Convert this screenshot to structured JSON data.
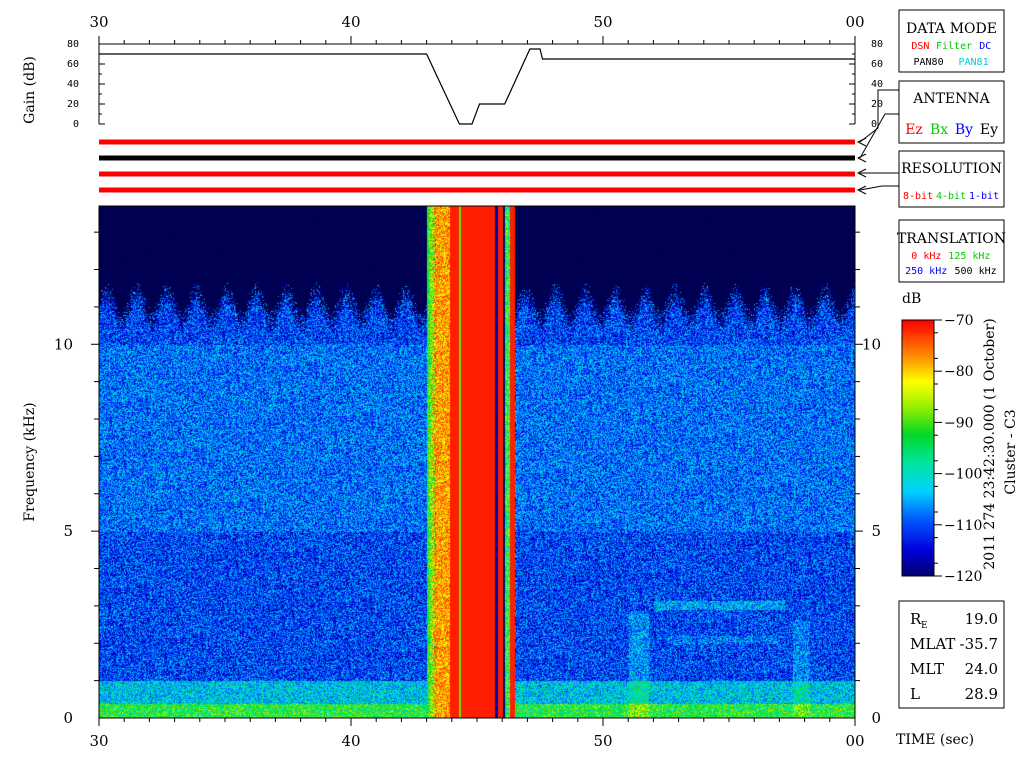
{
  "chart_data": {
    "type": "heatmap",
    "time_axis": {
      "label": "TIME (sec)",
      "tick_labels": [
        "30",
        "40",
        "50",
        "00"
      ],
      "range": [
        30,
        60
      ]
    },
    "gain_panel": {
      "ylabel": "Gain (dB)",
      "tick_labels": [
        "80",
        "60",
        "40",
        "20",
        "0"
      ],
      "range": [
        0,
        80
      ],
      "trace": [
        {
          "t": 30.0,
          "gain": 70
        },
        {
          "t": 43.0,
          "gain": 70
        },
        {
          "t": 44.3,
          "gain": 0
        },
        {
          "t": 44.8,
          "gain": 0
        },
        {
          "t": 45.1,
          "gain": 20
        },
        {
          "t": 46.1,
          "gain": 20
        },
        {
          "t": 47.1,
          "gain": 75
        },
        {
          "t": 47.5,
          "gain": 75
        },
        {
          "t": 47.6,
          "gain": 65
        },
        {
          "t": 60.0,
          "gain": 65
        }
      ]
    },
    "status_bars": {
      "colors": [
        "#ff0000",
        "#000000",
        "#ff0000",
        "#ff0000"
      ]
    },
    "spectrogram": {
      "ylabel": "Frequency (kHz)",
      "tick_labels": [
        "10",
        "5",
        "0"
      ],
      "frequency_range_khz": [
        0,
        13.7
      ],
      "time_range_sec": [
        30,
        60
      ],
      "noise_floor_db": -110,
      "cutoff_khz": 11,
      "intense_band_sec": [
        43.0,
        46.5
      ]
    },
    "colorbar": {
      "unit": "dB",
      "tick_labels": [
        "-70",
        "-80",
        "-90",
        "-100",
        "-110",
        "-120"
      ],
      "range": [
        -120,
        -70
      ]
    },
    "legend_boxes": {
      "data_mode": {
        "title": "DATA MODE",
        "row1": [
          {
            "text": "DSN",
            "color": "#ff0000"
          },
          {
            "text": "Filter",
            "color": "#00cc00"
          },
          {
            "text": "DC",
            "color": "#0000ff"
          }
        ],
        "row2": [
          {
            "text": "PAN80",
            "color": "#000000"
          },
          {
            "text": "PAN81",
            "color": "#00cccc"
          }
        ]
      },
      "antenna": {
        "title": "ANTENNA",
        "items": [
          {
            "text": "Ez",
            "color": "#ff0000"
          },
          {
            "text": "Bx",
            "color": "#00cc00"
          },
          {
            "text": "By",
            "color": "#0000ff"
          },
          {
            "text": "Ey",
            "color": "#000000"
          }
        ]
      },
      "resolution": {
        "title": "RESOLUTION",
        "items": [
          {
            "text": "8-bit",
            "color": "#ff0000"
          },
          {
            "text": "4-bit",
            "color": "#00cc00"
          },
          {
            "text": "1-bit",
            "color": "#0000ff"
          }
        ]
      },
      "translation": {
        "title": "TRANSLATION",
        "row1": [
          {
            "text": "0 kHz",
            "color": "#ff0000"
          },
          {
            "text": "125 kHz",
            "color": "#00cc00"
          }
        ],
        "row2": [
          {
            "text": "250 kHz",
            "color": "#0000ff"
          },
          {
            "text": "500 kHz",
            "color": "#000000"
          }
        ]
      }
    },
    "side_label": "2011 274 23:42:30.000 (1 October)",
    "spacecraft": "Cluster - C3",
    "orbit_params": [
      {
        "name": "R",
        "sub": "E",
        "value": "19.0"
      },
      {
        "name": "MLAT",
        "sub": "",
        "value": "-35.7"
      },
      {
        "name": "MLT",
        "sub": "",
        "value": "24.0"
      },
      {
        "name": "L",
        "sub": "",
        "value": "28.9"
      }
    ]
  }
}
